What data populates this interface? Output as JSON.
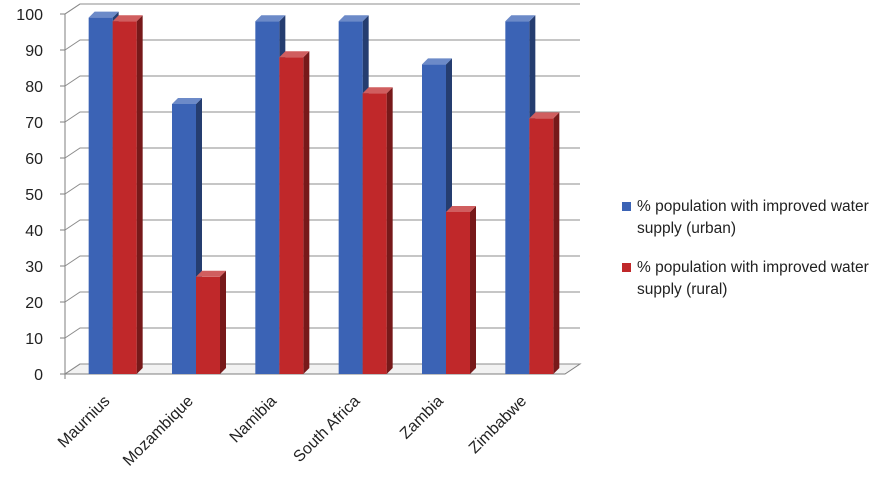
{
  "chart_data": {
    "type": "bar",
    "categories": [
      "Maurnius",
      "Mozambique",
      "Namibia",
      "South Africa",
      "Zambia",
      "Zimbabwe"
    ],
    "series": [
      {
        "name": "% population with improved water supply (urban)",
        "values": [
          99,
          75,
          98,
          98,
          86,
          98
        ],
        "color": "#3b63b5"
      },
      {
        "name": "% population with improved water supply (rural)",
        "values": [
          98,
          27,
          88,
          78,
          45,
          71
        ],
        "color": "#c0282a"
      }
    ],
    "y_ticks": [
      "0",
      "10",
      "20",
      "30",
      "40",
      "50",
      "60",
      "70",
      "80",
      "90",
      "100"
    ],
    "ylim": [
      0,
      100
    ],
    "grid": true,
    "legend_position": "right",
    "style": "3d-clustered-column"
  }
}
